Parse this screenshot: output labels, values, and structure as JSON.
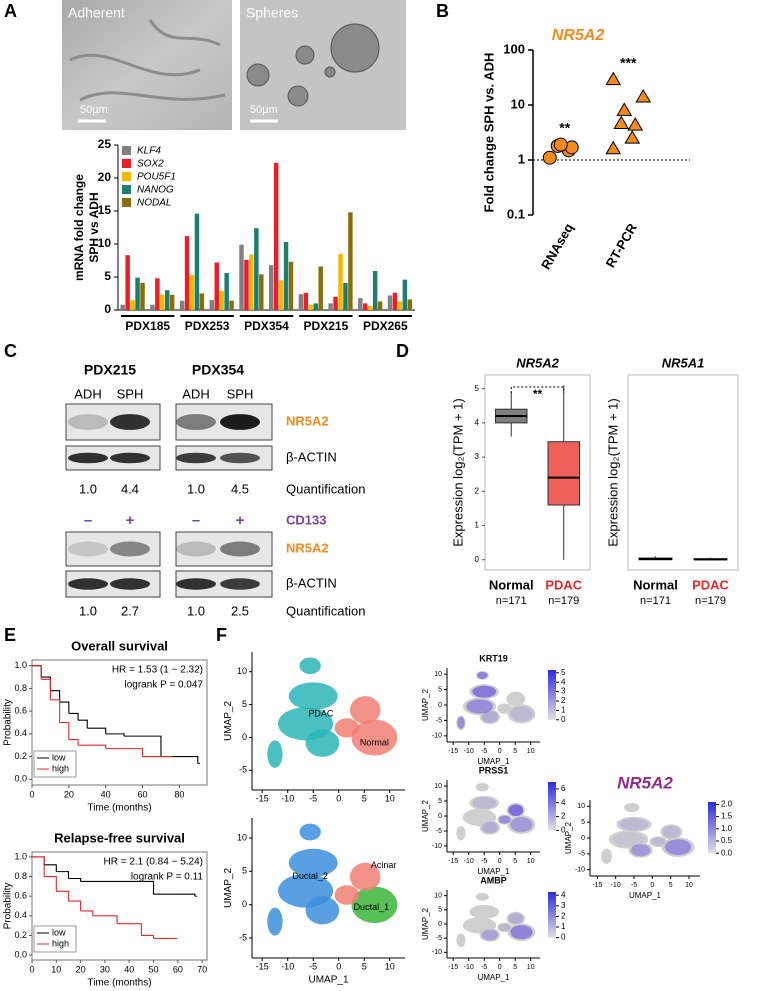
{
  "panel_labels": [
    "A",
    "B",
    "C",
    "D",
    "E",
    "F"
  ],
  "panel_a_images": {
    "left": "Adherent",
    "right": "Spheres",
    "scale_left": "50µm",
    "scale_right": "50µm"
  },
  "chart_data": [
    {
      "type": "bar",
      "ylabel": [
        "mRNA fold change",
        "SPH vs ADH"
      ],
      "categories": [
        "PDX185",
        null,
        "PDX253",
        null,
        "PDX354",
        null,
        "PDX215",
        null,
        "PDX265",
        null
      ],
      "series": [
        {
          "name": "KLF4",
          "color": "#808080",
          "values": [
            0.8,
            0.8,
            1.4,
            1.5,
            9.9,
            6.8,
            2.4,
            1.0,
            1.8,
            2.2
          ]
        },
        {
          "name": "SOX2",
          "color": "#ee1c25",
          "values": [
            8.3,
            4.8,
            11.2,
            7.2,
            7.6,
            22.3,
            2.6,
            2.0,
            1.0,
            2.6
          ]
        },
        {
          "name": "POU5F1",
          "color": "#f5b800",
          "values": [
            1.5,
            2.3,
            5.3,
            2.9,
            8.4,
            4.5,
            0.8,
            8.5,
            0.6,
            1.3
          ]
        },
        {
          "name": "NANOG",
          "color": "#1a7f6e",
          "values": [
            4.9,
            3.0,
            14.6,
            5.6,
            12.4,
            10.3,
            1.0,
            4.1,
            5.9,
            4.6
          ]
        },
        {
          "name": "NODAL",
          "color": "#8a6d0b",
          "values": [
            4.1,
            2.3,
            2.5,
            1.4,
            5.4,
            7.3,
            6.6,
            14.8,
            1.3,
            1.6
          ]
        }
      ],
      "ylim": [
        0,
        25
      ],
      "yticks": [
        0,
        5,
        10,
        15,
        20,
        25
      ],
      "legend": "upper left"
    },
    {
      "type": "dot",
      "title": "NR5A2",
      "ylabel": "Fold change SPH vs. ADH",
      "categories": [
        "RNAseq",
        "RT-PCR"
      ],
      "values": [
        [
          1.1,
          1.5,
          1.7,
          1.8,
          1.9
        ],
        [
          1.6,
          2.5,
          4.3,
          4.6,
          8.0,
          14,
          29
        ]
      ],
      "markers": [
        "circle",
        "triangle"
      ],
      "color": "#f28a1e",
      "ylim": [
        0.1,
        100
      ],
      "yticks": [
        0.1,
        1,
        10,
        100
      ],
      "log_scale": true,
      "hline": 1,
      "annotations": [
        "**",
        "***"
      ]
    },
    {
      "type": "box",
      "title": "NR5A2",
      "ylabel": "Expression log₂(TPM + 1)",
      "categories": [
        "Normal",
        "PDAC"
      ],
      "counts": [
        "n=171",
        "n=179"
      ],
      "category_colors": [
        "#000000",
        "#e8272a"
      ],
      "colors": [
        "#7f7f7f",
        "#f0605a"
      ],
      "boxes": [
        {
          "whisker_low": 3.6,
          "q1": 4.0,
          "median": 4.2,
          "q3": 4.4,
          "whisker_high": 4.9
        },
        {
          "whisker_low": 0,
          "q1": 1.6,
          "median": 2.4,
          "q3": 3.45,
          "whisker_high": 5.1
        }
      ],
      "ylim": [
        -0.3,
        5.4
      ],
      "yticks": [
        0,
        1,
        2,
        3,
        4,
        5
      ],
      "annotation": "**"
    },
    {
      "type": "box",
      "title": "NR5A1",
      "ylabel": "Expression log₂(TPM + 1)",
      "categories": [
        "Normal",
        "PDAC"
      ],
      "counts": [
        "n=171",
        "n=179"
      ],
      "category_colors": [
        "#000000",
        "#e8272a"
      ],
      "colors": [
        "#7f7f7f",
        "#f0605a"
      ],
      "boxes": [
        {
          "whisker_low": 0,
          "q1": 0,
          "median": 0.02,
          "q3": 0.05,
          "whisker_high": 0.1
        },
        {
          "whisker_low": 0,
          "q1": 0,
          "median": 0.01,
          "q3": 0.03,
          "whisker_high": 0.06
        }
      ],
      "ylim": [
        -0.3,
        5.4
      ]
    },
    {
      "type": "km",
      "title": "Overall survival",
      "xlabel": "Time (months)",
      "ylabel": "Probability",
      "annotations": [
        "HR = 1.53 (1 − 2.32)",
        "logrank P = 0.047"
      ],
      "series": [
        {
          "name": "low",
          "color": "#000000",
          "x": [
            0,
            5,
            10,
            15,
            20,
            25,
            30,
            40,
            50,
            60,
            70,
            80,
            90
          ],
          "values": [
            1,
            0.9,
            0.78,
            0.68,
            0.58,
            0.52,
            0.45,
            0.4,
            0.38,
            0.38,
            0.2,
            0.2,
            0.14
          ]
        },
        {
          "name": "high",
          "color": "#e8272a",
          "x": [
            0,
            5,
            10,
            15,
            20,
            25,
            30,
            40,
            50,
            60,
            70,
            75
          ],
          "values": [
            1,
            0.88,
            0.7,
            0.5,
            0.35,
            0.3,
            0.3,
            0.27,
            0.27,
            0.2,
            0.2,
            0.2
          ]
        }
      ],
      "xlim": [
        0,
        95
      ],
      "xticks": [
        0,
        20,
        40,
        60,
        80
      ],
      "ylim": [
        -0.05,
        1.05
      ],
      "yticks": [
        {
          "value": 0,
          "label": "0.0"
        },
        {
          "value": 0.2,
          "label": "0.2"
        },
        {
          "value": 0.4,
          "label": "0.4"
        },
        {
          "value": 0.6,
          "label": "0.6"
        },
        {
          "value": 0.8,
          "label": "0.8"
        },
        {
          "value": 1,
          "label": "1.0"
        }
      ],
      "legend": "lower left"
    },
    {
      "type": "km",
      "title": "Relapse-free survival",
      "xlabel": "Time (months)",
      "ylabel": "Probability",
      "annotations": [
        "HR = 2.1 (0.84 − 5.24)",
        "logrank P = 0.11"
      ],
      "series": [
        {
          "name": "low",
          "color": "#000000",
          "x": [
            0,
            5,
            10,
            15,
            20,
            30,
            45,
            50,
            60,
            67
          ],
          "values": [
            1,
            0.92,
            0.85,
            0.78,
            0.75,
            0.75,
            0.75,
            0.62,
            0.62,
            0.6
          ]
        },
        {
          "name": "high",
          "color": "#e8272a",
          "x": [
            0,
            5,
            10,
            15,
            20,
            25,
            30,
            35,
            45,
            50,
            59
          ],
          "values": [
            1,
            0.8,
            0.65,
            0.55,
            0.45,
            0.4,
            0.4,
            0.32,
            0.2,
            0.17,
            0.17
          ]
        }
      ],
      "xlim": [
        0,
        72
      ],
      "xticks": [
        0,
        10,
        20,
        30,
        40,
        50,
        60,
        70
      ],
      "ylim": [
        -0.05,
        1.05
      ],
      "yticks": [
        {
          "value": 0,
          "label": "0.0"
        },
        {
          "value": 0.2,
          "label": "0.2"
        },
        {
          "value": 0.4,
          "label": "0.4"
        },
        {
          "value": 0.6,
          "label": "0.6"
        },
        {
          "value": 0.8,
          "label": "0.8"
        },
        {
          "value": 1,
          "label": "1.0"
        }
      ],
      "legend": "lower left"
    }
  ],
  "panel_c": {
    "samples": [
      "PDX215",
      "PDX354"
    ],
    "conditions": [
      "ADH",
      "SPH",
      "ADH",
      "SPH"
    ],
    "blot_labels_top": [
      "NR5A2",
      "β-ACTIN"
    ],
    "quant_label": "Quantification",
    "quant_top": [
      "1.0",
      "4.4",
      "1.0",
      "4.5"
    ],
    "cd133_signs": [
      "–",
      "+",
      "–",
      "+"
    ],
    "cd133_label": "CD133",
    "blot_labels_bottom": [
      "NR5A2",
      "β-ACTIN"
    ],
    "quant_bottom": [
      "1.0",
      "2.7",
      "1.0",
      "2.5"
    ]
  },
  "panel_f": {
    "xlabel": "UMAP_1",
    "ylabel": "UMAP_2",
    "big_xlim": [
      -17,
      13
    ],
    "big_ylim": [
      -8,
      13
    ],
    "big_xticks": [
      -15,
      -10,
      -5,
      0,
      5,
      10
    ],
    "big_yticks": [
      -5,
      0,
      5,
      10
    ],
    "big_labels": [
      [
        "PDAC",
        "Normal"
      ],
      [
        "Ductal_2",
        "Acinar",
        "Ductal_1"
      ]
    ],
    "small_xlim": [
      -17,
      13
    ],
    "small_ylim": [
      -12,
      12
    ],
    "small_xticks": [
      -15,
      -10,
      -5,
      0,
      5,
      10
    ],
    "small_yticks": [
      -10,
      -5,
      0,
      5,
      10
    ],
    "features": [
      {
        "name": "KRT19",
        "lim": [
          0,
          5.3
        ],
        "ticks": [
          0,
          1,
          2,
          3,
          4,
          5
        ]
      },
      {
        "name": "PRSS1",
        "lim": [
          0,
          7
        ],
        "ticks": [
          0,
          2,
          4,
          6
        ]
      },
      {
        "name": "AMBP",
        "lim": [
          0,
          4.3
        ],
        "ticks": [
          0,
          1,
          2,
          3,
          4
        ]
      },
      {
        "name": "NR5A2",
        "lim": [
          0,
          2.1
        ],
        "ticks": [
          {
            "value": 0,
            "label": "0.0"
          },
          {
            "value": 0.5,
            "label": "0.5"
          },
          {
            "value": 1,
            "label": "1.0"
          },
          {
            "value": 1.5,
            "label": "1.5"
          },
          {
            "value": 2,
            "label": "2.0"
          }
        ]
      }
    ]
  }
}
